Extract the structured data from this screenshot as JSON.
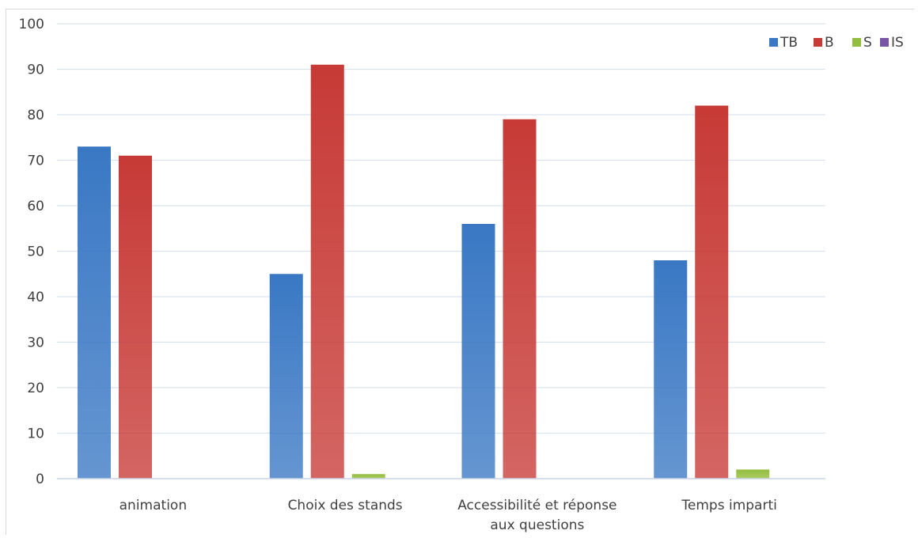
{
  "chart_data": {
    "type": "bar",
    "title": "",
    "xlabel": "",
    "ylabel": "",
    "categories": [
      "animation",
      "Choix des stands",
      "Accessibilité et réponse aux questions",
      "Temps imparti"
    ],
    "category_lines": [
      [
        "animation"
      ],
      [
        "Choix des stands"
      ],
      [
        "Accessibilité et réponse",
        "aux questions"
      ],
      [
        "Temps imparti"
      ]
    ],
    "series": [
      {
        "name": "TB",
        "values": [
          73,
          45,
          56,
          48
        ],
        "color": "#3a78c4"
      },
      {
        "name": "B",
        "values": [
          71,
          91,
          79,
          82
        ],
        "color": "#c73a36"
      },
      {
        "name": "S",
        "values": [
          0,
          1,
          0,
          2
        ],
        "color": "#93bd3c"
      },
      {
        "name": "IS",
        "values": [
          0,
          0,
          0,
          0
        ],
        "color": "#7a55a6"
      }
    ],
    "ylim": [
      0,
      100
    ],
    "yticks": [
      0,
      10,
      20,
      30,
      40,
      50,
      60,
      70,
      80,
      90,
      100
    ],
    "grid": true,
    "legend_position": "top-right"
  }
}
